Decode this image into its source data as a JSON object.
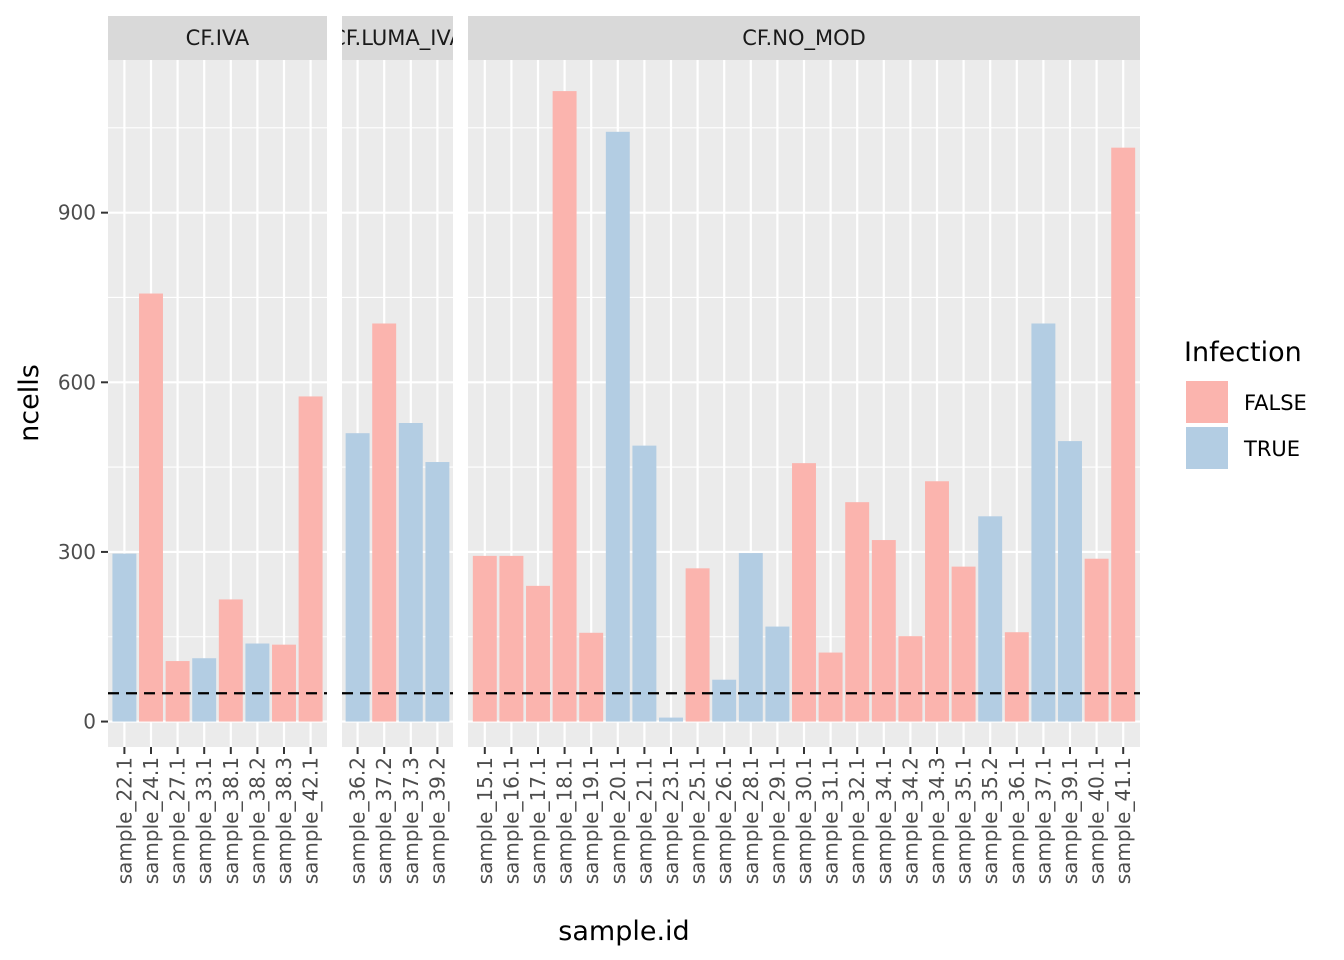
{
  "chart_data": {
    "type": "bar",
    "title": "",
    "xlabel": "sample.id",
    "ylabel": "ncells",
    "ylim": [
      -45,
      1170
    ],
    "yticks": [
      0,
      300,
      600,
      900
    ],
    "ytick_labels": [
      "0",
      "300",
      "600",
      "900"
    ],
    "threshold_line": {
      "y": 50,
      "style": "dashed"
    },
    "colors": {
      "FALSE": "#fbb4ae",
      "TRUE": "#b3cde3"
    },
    "legend": {
      "title": "Infection",
      "position": "right",
      "entries": [
        {
          "key": "FALSE",
          "label": "FALSE"
        },
        {
          "key": "TRUE",
          "label": "TRUE"
        }
      ]
    },
    "facets": [
      {
        "label": "CF.IVA",
        "bars": [
          {
            "sample": "sample_22.1",
            "value": 297,
            "infection": "TRUE"
          },
          {
            "sample": "sample_24.1",
            "value": 757,
            "infection": "FALSE"
          },
          {
            "sample": "sample_27.1",
            "value": 107,
            "infection": "FALSE"
          },
          {
            "sample": "sample_33.1",
            "value": 112,
            "infection": "TRUE"
          },
          {
            "sample": "sample_38.1",
            "value": 216,
            "infection": "FALSE"
          },
          {
            "sample": "sample_38.2",
            "value": 138,
            "infection": "TRUE"
          },
          {
            "sample": "sample_38.3",
            "value": 136,
            "infection": "FALSE"
          },
          {
            "sample": "sample_42.1",
            "value": 575,
            "infection": "FALSE"
          }
        ]
      },
      {
        "label": "CF.LUMA_IVA",
        "bars": [
          {
            "sample": "sample_36.2",
            "value": 510,
            "infection": "TRUE"
          },
          {
            "sample": "sample_37.2",
            "value": 704,
            "infection": "FALSE"
          },
          {
            "sample": "sample_37.3",
            "value": 528,
            "infection": "TRUE"
          },
          {
            "sample": "sample_39.2",
            "value": 459,
            "infection": "TRUE"
          }
        ]
      },
      {
        "label": "CF.NO_MOD",
        "bars": [
          {
            "sample": "sample_15.1",
            "value": 293,
            "infection": "FALSE"
          },
          {
            "sample": "sample_16.1",
            "value": 293,
            "infection": "FALSE"
          },
          {
            "sample": "sample_17.1",
            "value": 240,
            "infection": "FALSE"
          },
          {
            "sample": "sample_18.1",
            "value": 1115,
            "infection": "FALSE"
          },
          {
            "sample": "sample_19.1",
            "value": 157,
            "infection": "FALSE"
          },
          {
            "sample": "sample_20.1",
            "value": 1043,
            "infection": "TRUE"
          },
          {
            "sample": "sample_21.1",
            "value": 488,
            "infection": "TRUE"
          },
          {
            "sample": "sample_23.1",
            "value": 7,
            "infection": "TRUE"
          },
          {
            "sample": "sample_25.1",
            "value": 271,
            "infection": "FALSE"
          },
          {
            "sample": "sample_26.1",
            "value": 74,
            "infection": "TRUE"
          },
          {
            "sample": "sample_28.1",
            "value": 298,
            "infection": "TRUE"
          },
          {
            "sample": "sample_29.1",
            "value": 168,
            "infection": "TRUE"
          },
          {
            "sample": "sample_30.1",
            "value": 457,
            "infection": "FALSE"
          },
          {
            "sample": "sample_31.1",
            "value": 122,
            "infection": "FALSE"
          },
          {
            "sample": "sample_32.1",
            "value": 388,
            "infection": "FALSE"
          },
          {
            "sample": "sample_34.1",
            "value": 321,
            "infection": "FALSE"
          },
          {
            "sample": "sample_34.2",
            "value": 151,
            "infection": "FALSE"
          },
          {
            "sample": "sample_34.3",
            "value": 425,
            "infection": "FALSE"
          },
          {
            "sample": "sample_35.1",
            "value": 274,
            "infection": "FALSE"
          },
          {
            "sample": "sample_35.2",
            "value": 363,
            "infection": "TRUE"
          },
          {
            "sample": "sample_36.1",
            "value": 158,
            "infection": "FALSE"
          },
          {
            "sample": "sample_37.1",
            "value": 704,
            "infection": "TRUE"
          },
          {
            "sample": "sample_39.1",
            "value": 496,
            "infection": "TRUE"
          },
          {
            "sample": "sample_40.1",
            "value": 288,
            "infection": "FALSE"
          },
          {
            "sample": "sample_41.1",
            "value": 1015,
            "infection": "FALSE"
          }
        ]
      }
    ]
  }
}
